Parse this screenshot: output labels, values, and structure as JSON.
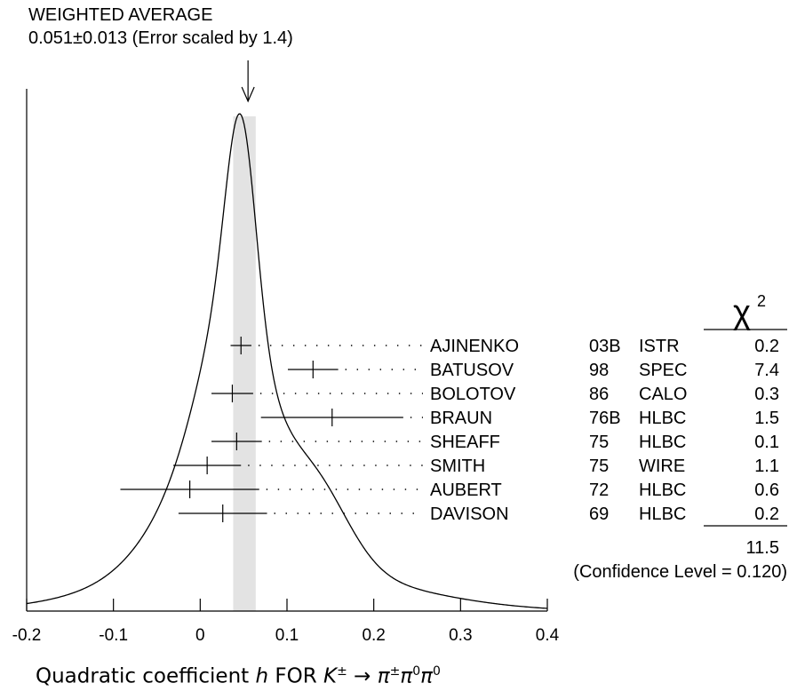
{
  "header": {
    "line1": "WEIGHTED AVERAGE",
    "line2": "0.051±0.013 (Error scaled by 1.4)"
  },
  "footer": {
    "prefix": "Quadratic coefficient ",
    "var_h": "h",
    "for_text": " FOR ",
    "var_k": "K",
    "sup_pm": "±",
    "arrow": " → ",
    "pi1": "π",
    "pi1_sup": "±",
    "pi2": "π",
    "pi2_sup": "0",
    "pi3": "π",
    "pi3_sup": "0"
  },
  "chart_data": {
    "type": "ideogram",
    "title": "WEIGHTED AVERAGE",
    "average": {
      "value": 0.051,
      "error": 0.013,
      "scale_note": "(Error scaled by 1.4)"
    },
    "xlim": [
      -0.2,
      0.4
    ],
    "xticks": [
      "-0.2",
      "-0.1",
      "0",
      "0.1",
      "0.2",
      "0.3",
      "0.4"
    ],
    "chi2_header": "χ",
    "chi2_sup": "2",
    "measurements": [
      {
        "name": "AJINENKO",
        "year": "03B",
        "tech": "ISTR",
        "value": 0.047,
        "error": 0.012,
        "chi2": "0.2"
      },
      {
        "name": "BATUSOV",
        "year": "98",
        "tech": "SPEC",
        "value": 0.13,
        "error": 0.029,
        "chi2": "7.4"
      },
      {
        "name": "BOLOTOV",
        "year": "86",
        "tech": "CALO",
        "value": 0.037,
        "error": 0.024,
        "chi2": "0.3"
      },
      {
        "name": "BRAUN",
        "year": "76B",
        "tech": "HLBC",
        "value": 0.152,
        "error": 0.082,
        "chi2": "1.5"
      },
      {
        "name": "SHEAFF",
        "year": "75",
        "tech": "HLBC",
        "value": 0.042,
        "error": 0.029,
        "chi2": "0.1"
      },
      {
        "name": "SMITH",
        "year": "75",
        "tech": "WIRE",
        "value": 0.008,
        "error": 0.039,
        "chi2": "1.1"
      },
      {
        "name": "AUBERT",
        "year": "72",
        "tech": "HLBC",
        "value": -0.012,
        "error": 0.08,
        "chi2": "0.6"
      },
      {
        "name": "DAVISON",
        "year": "69",
        "tech": "HLBC",
        "value": 0.026,
        "error": 0.051,
        "chi2": "0.2"
      }
    ],
    "chi2_total": "11.5",
    "confidence_level": "(Confidence Level = 0.120)"
  }
}
